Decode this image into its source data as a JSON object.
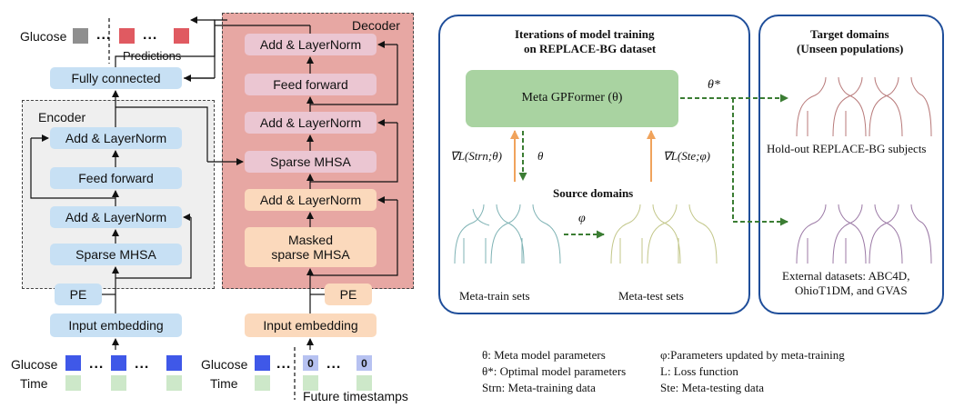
{
  "encoder": {
    "title": "Encoder",
    "add_norm_top": "Add & LayerNorm",
    "feed_forward": "Feed forward",
    "add_norm_bottom": "Add & LayerNorm",
    "sparse_mhsa": "Sparse MHSA",
    "pe": "PE",
    "input_embedding": "Input embedding"
  },
  "decoder": {
    "title": "Decoder",
    "add_norm_top": "Add & LayerNorm",
    "feed_forward": "Feed forward",
    "add_norm_mid": "Add & LayerNorm",
    "sparse_mhsa": "Sparse MHSA",
    "add_norm_bottom": "Add & LayerNorm",
    "masked_sparse_mhsa": "Masked sparse MHSA",
    "pe": "PE",
    "input_embedding": "Input embedding"
  },
  "output": {
    "fully_connected": "Fully connected",
    "glucose_label": "Glucose",
    "predictions_label": "Predictions",
    "dots": "..."
  },
  "inputs_encoder": {
    "glucose_label": "Glucose",
    "time_label": "Time",
    "dots": "..."
  },
  "inputs_decoder": {
    "glucose_label": "Glucose",
    "time_label": "Time",
    "zero_a": "0",
    "zero_b": "0",
    "future_label": "Future timestamps",
    "dots": "..."
  },
  "meta": {
    "iterations_title_line1": "Iterations of model training",
    "iterations_title_line2": "on REPLACE-BG dataset",
    "model_label": "Meta GPFormer (θ)",
    "theta_star": "θ*",
    "grad_train": "∇L(Strn;θ)",
    "theta": "θ",
    "grad_test": "∇L(Ste;φ)",
    "source_domains": "Source domains",
    "phi": "φ",
    "meta_train_sets": "Meta-train sets",
    "meta_test_sets": "Meta-test sets",
    "target_title_line1": "Target domains",
    "target_title_line2": "(Unseen populations)",
    "holdout_label": "Hold-out REPLACE-BG subjects",
    "external_line1": "External datasets: ABC4D,",
    "external_line2": "OhioT1DM, and GVAS"
  },
  "legend": {
    "theta_def": "θ: Meta model parameters",
    "theta_star_def": "θ*: Optimal model parameters",
    "strn_def": "Strn: Meta-training data",
    "phi_def": "φ:Parameters updated by meta-training",
    "loss_def": "L: Loss function",
    "ste_def": "Ste: Meta-testing data"
  },
  "colors": {
    "encoder_block": "#c7e0f4",
    "decoder_region": "#e7a7a3",
    "decoder_block_pink": "#ebc6d2",
    "decoder_block_peach": "#fbd9bc",
    "meta_model": "#a9d3a1",
    "panel_border": "#1f4e9a",
    "grad_arrow": "#f0a35c",
    "dashed_arrow": "#3b7d33"
  }
}
